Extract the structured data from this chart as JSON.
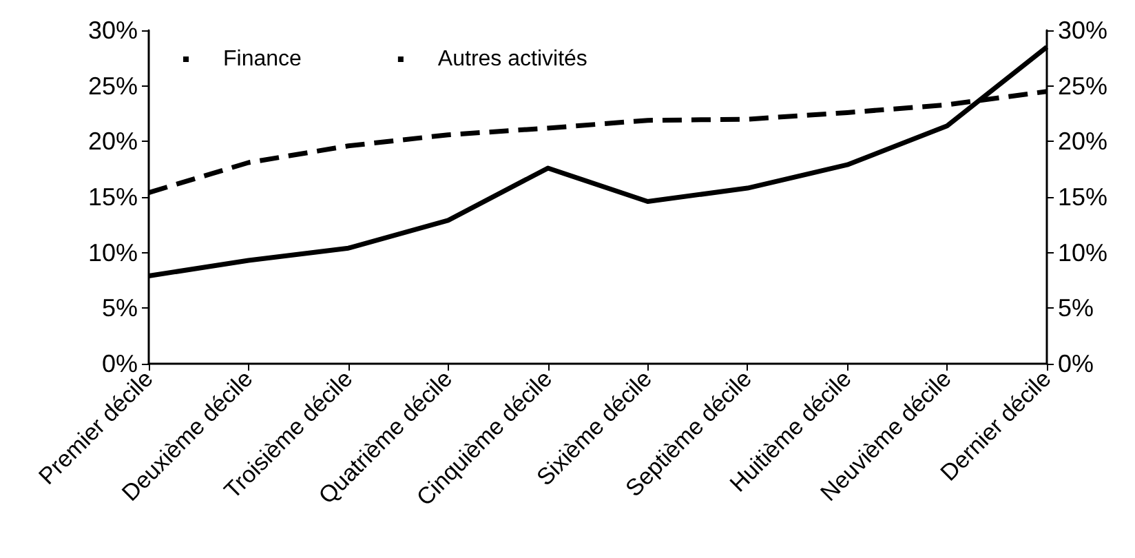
{
  "chart_data": {
    "type": "line",
    "categories": [
      "Premier décile",
      "Deuxième décile",
      "Troisième décile",
      "Quatrième décile",
      "Cinquième décile",
      "Sixième décile",
      "Septième décile",
      "Huitième décile",
      "Neuvième décile",
      "Dernier décile"
    ],
    "series": [
      {
        "name": "Finance",
        "color": "#000000",
        "line_style": "solid",
        "values": [
          7.9,
          9.3,
          10.4,
          12.9,
          17.6,
          14.6,
          15.8,
          17.9,
          21.4,
          28.5
        ]
      },
      {
        "name": "Autres activités",
        "color": "#000000",
        "line_style": "dashed",
        "values": [
          15.4,
          18.1,
          19.6,
          20.6,
          21.2,
          21.9,
          22.0,
          22.6,
          23.3,
          24.5
        ]
      }
    ],
    "ylim": [
      0,
      30
    ],
    "yticks": [
      {
        "value": 0,
        "label": "0%"
      },
      {
        "value": 5,
        "label": "5%"
      },
      {
        "value": 10,
        "label": "10%"
      },
      {
        "value": 15,
        "label": "15%"
      },
      {
        "value": 20,
        "label": "20%"
      },
      {
        "value": 25,
        "label": "25%"
      },
      {
        "value": 30,
        "label": "30%"
      }
    ],
    "y2lim": [
      0,
      30
    ],
    "y2ticks": [
      {
        "value": 0,
        "label": "0%"
      },
      {
        "value": 5,
        "label": "5%"
      },
      {
        "value": 10,
        "label": "10%"
      },
      {
        "value": 15,
        "label": "15%"
      },
      {
        "value": 20,
        "label": "20%"
      },
      {
        "value": 25,
        "label": "25%"
      },
      {
        "value": 30,
        "label": "30%"
      }
    ],
    "grid": false,
    "legend": "top left",
    "marker": "none"
  }
}
